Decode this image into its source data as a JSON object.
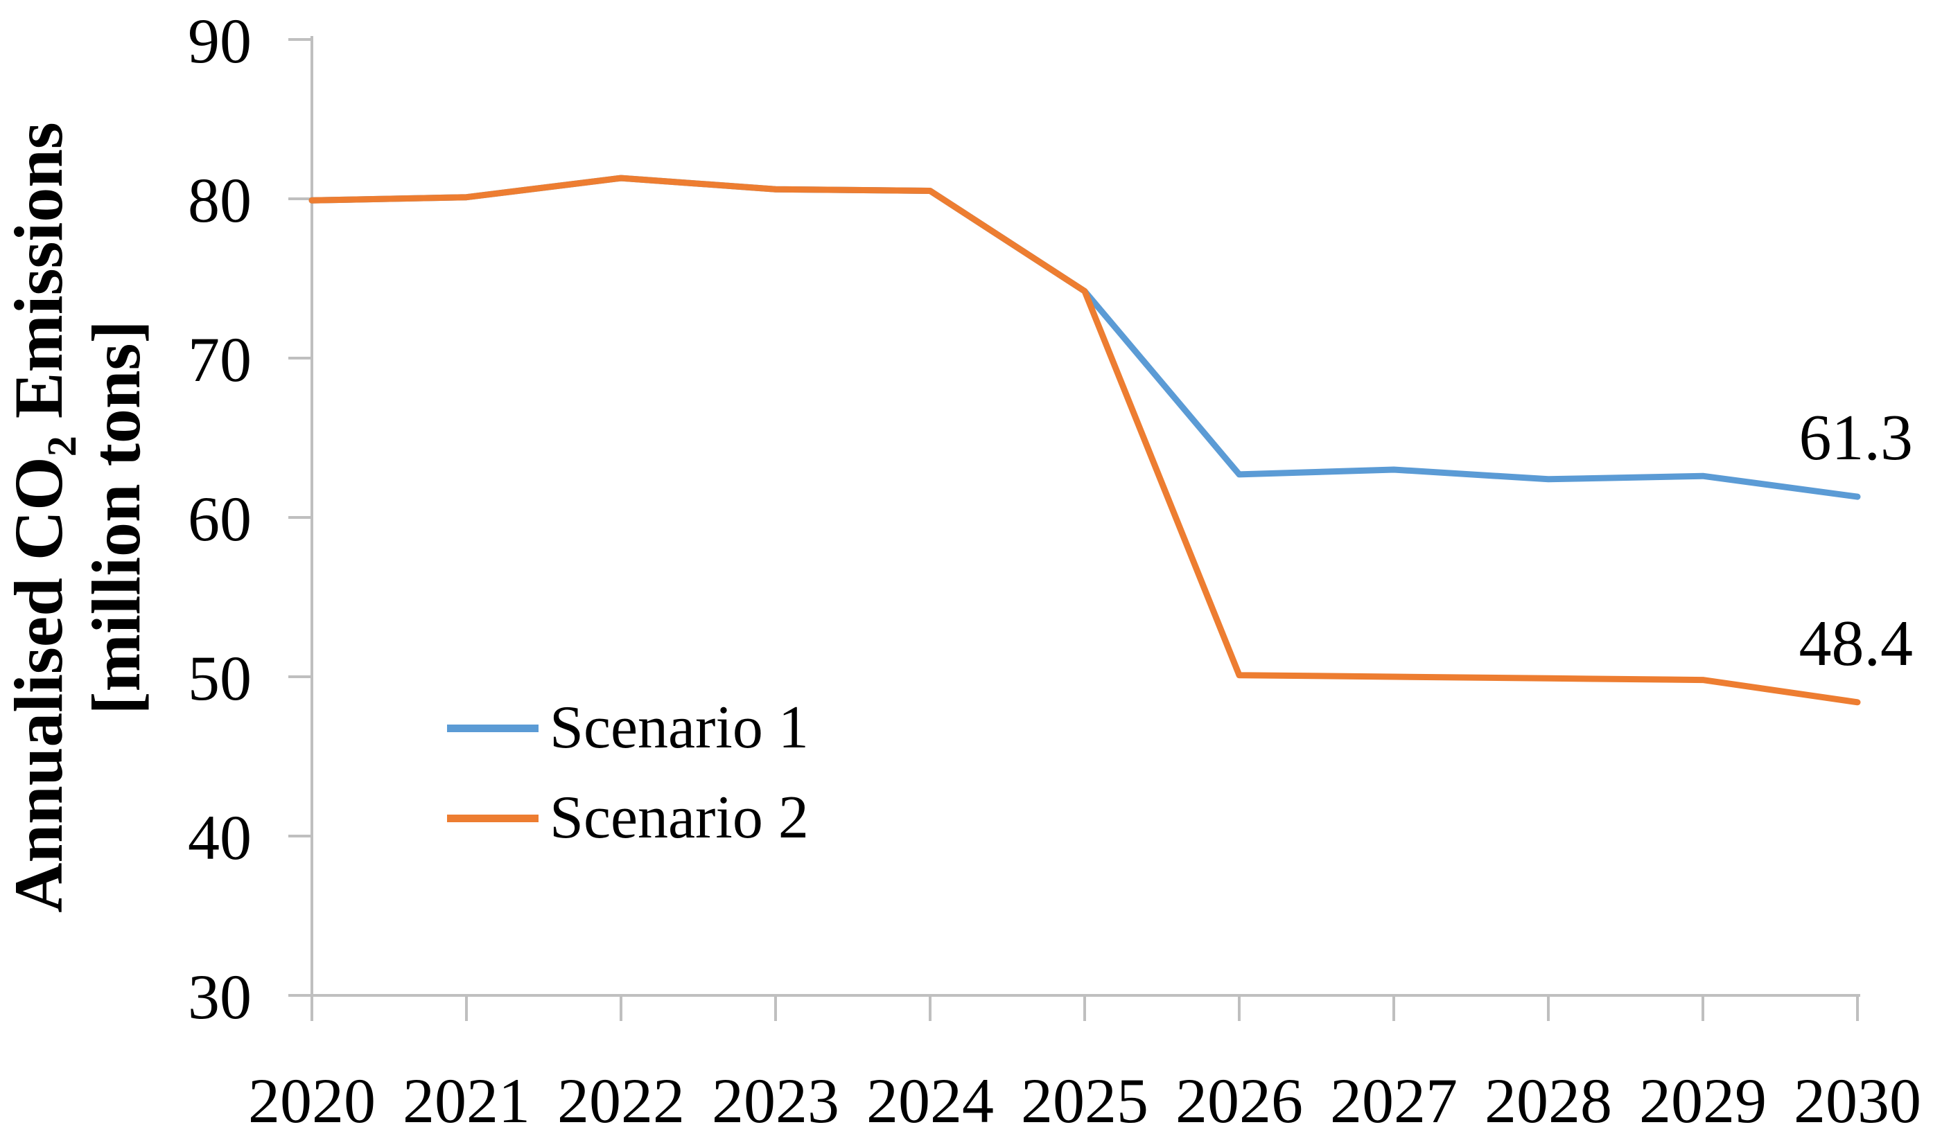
{
  "figure": {
    "background": "#ffffff"
  },
  "chart_data": {
    "type": "line",
    "title": "",
    "ylabel_line1": "Annualised CO₂ Emissions",
    "ylabel_line2": "[million tons]",
    "xlabel": "",
    "x": [
      "2020",
      "2021",
      "2022",
      "2023",
      "2024",
      "2025",
      "2026",
      "2027",
      "2028",
      "2029",
      "2030"
    ],
    "y_ticks": [
      30,
      40,
      50,
      60,
      70,
      80,
      90
    ],
    "ylim": [
      30,
      90
    ],
    "grid": false,
    "legend_position": "inside-left-middle",
    "axis_color": "#BFBFBF",
    "text_color": "#000000",
    "series": [
      {
        "name": "Scenario 1",
        "color": "#5B9BD5",
        "end_label": "61.3",
        "values": [
          79.9,
          80.1,
          81.3,
          80.6,
          80.5,
          74.2,
          62.7,
          63.0,
          62.4,
          62.6,
          61.3
        ]
      },
      {
        "name": "Scenario 2",
        "color": "#ED7D31",
        "end_label": "48.4",
        "values": [
          79.9,
          80.1,
          81.3,
          80.6,
          80.5,
          74.2,
          50.1,
          50.0,
          49.9,
          49.8,
          48.4
        ]
      }
    ]
  }
}
